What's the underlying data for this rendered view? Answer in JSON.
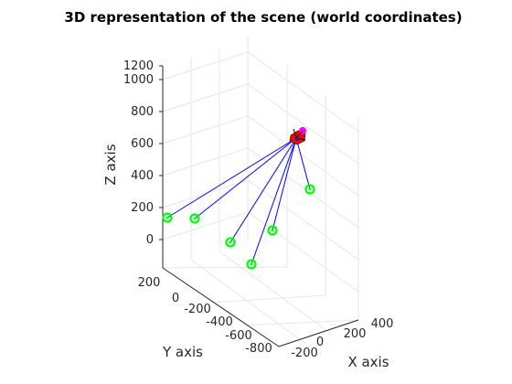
{
  "chart_data": {
    "type": "scatter",
    "projection": "3d",
    "title": "3D representation of the scene (world coordinates)",
    "xlabel": "X axis",
    "ylabel": "Y axis",
    "zlabel": "Z axis",
    "grid": true,
    "colors": {
      "points": "#00ff00",
      "rays": "#0000ff",
      "camera": "#ff0000",
      "camera_top": "#ff00ff"
    },
    "z_ticks": [
      "0",
      "200",
      "400",
      "600",
      "800",
      "1000",
      "1200"
    ],
    "y_ticks": [
      "200",
      "0",
      "-200",
      "-400",
      "-600",
      "-800"
    ],
    "x_ticks": [
      "-200",
      "0",
      "200",
      "400"
    ],
    "camera": {
      "name": "camera",
      "approx_position": "upper centre of scene, z ≈ 700"
    },
    "points": [
      {
        "name": "point-1",
        "z_estimate": 150
      },
      {
        "name": "point-2",
        "z_estimate": 150
      },
      {
        "name": "point-3",
        "z_estimate": 0
      },
      {
        "name": "point-4",
        "z_estimate": 0
      },
      {
        "name": "point-5",
        "z_estimate": 0
      },
      {
        "name": "point-6",
        "z_estimate": 0
      }
    ]
  }
}
